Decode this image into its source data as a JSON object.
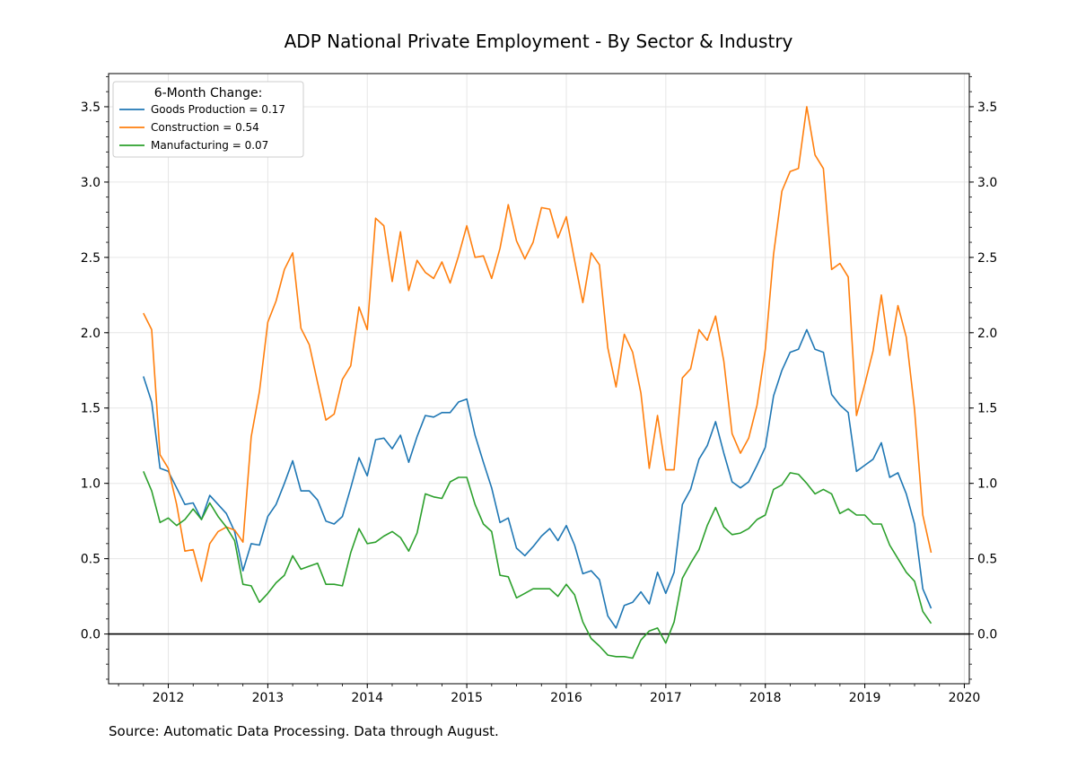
{
  "chart_data": {
    "type": "line",
    "title": "ADP National Private Employment - By Sector & Industry",
    "source": "Source: Automatic Data Processing. Data through August.",
    "xlabel": "",
    "ylabel": "",
    "xlim": [
      2011.4,
      2020.05
    ],
    "ylim": [
      -0.33,
      3.72
    ],
    "x_ticks": [
      2012,
      2013,
      2014,
      2015,
      2016,
      2017,
      2018,
      2019,
      2020
    ],
    "x_tick_labels": [
      "2012",
      "2013",
      "2014",
      "2015",
      "2016",
      "2017",
      "2018",
      "2019",
      "2020"
    ],
    "y_ticks": [
      0.0,
      0.5,
      1.0,
      1.5,
      2.0,
      2.5,
      3.0,
      3.5
    ],
    "y_tick_labels": [
      "0.0",
      "0.5",
      "1.0",
      "1.5",
      "2.0",
      "2.5",
      "3.0",
      "3.5"
    ],
    "grid": true,
    "zero_line": true,
    "legend": {
      "title": "6-Month Change:",
      "position": "top-left"
    },
    "x_start": 2011.75,
    "x_step": 0.08333,
    "series": [
      {
        "name": "Goods Production = 0.17",
        "color": "#1f77b4",
        "values": [
          1.71,
          1.54,
          1.1,
          1.08,
          0.97,
          0.86,
          0.87,
          0.76,
          0.92,
          0.86,
          0.8,
          0.68,
          0.42,
          0.6,
          0.59,
          0.78,
          0.86,
          1.0,
          1.15,
          0.95,
          0.95,
          0.89,
          0.75,
          0.73,
          0.78,
          0.97,
          1.17,
          1.05,
          1.29,
          1.3,
          1.23,
          1.32,
          1.14,
          1.31,
          1.45,
          1.44,
          1.47,
          1.47,
          1.54,
          1.56,
          1.32,
          1.14,
          0.97,
          0.74,
          0.77,
          0.57,
          0.52,
          0.58,
          0.65,
          0.7,
          0.62,
          0.72,
          0.59,
          0.4,
          0.42,
          0.36,
          0.12,
          0.04,
          0.19,
          0.21,
          0.28,
          0.2,
          0.41,
          0.27,
          0.41,
          0.86,
          0.96,
          1.16,
          1.25,
          1.41,
          1.2,
          1.01,
          0.97,
          1.01,
          1.12,
          1.24,
          1.58,
          1.75,
          1.87,
          1.89,
          2.02,
          1.89,
          1.87,
          1.59,
          1.52,
          1.47,
          1.08,
          1.12,
          1.16,
          1.27,
          1.04,
          1.07,
          0.93,
          0.73,
          0.3,
          0.17
        ]
      },
      {
        "name": "Construction = 0.54",
        "color": "#ff7f0e",
        "values": [
          2.13,
          2.02,
          1.19,
          1.1,
          0.86,
          0.55,
          0.56,
          0.35,
          0.6,
          0.68,
          0.71,
          0.69,
          0.61,
          1.31,
          1.61,
          2.07,
          2.21,
          2.42,
          2.53,
          2.03,
          1.92,
          1.67,
          1.42,
          1.46,
          1.69,
          1.78,
          2.17,
          2.02,
          2.76,
          2.71,
          2.34,
          2.67,
          2.28,
          2.48,
          2.4,
          2.36,
          2.47,
          2.33,
          2.51,
          2.71,
          2.5,
          2.51,
          2.36,
          2.56,
          2.85,
          2.61,
          2.49,
          2.6,
          2.83,
          2.82,
          2.63,
          2.77,
          2.48,
          2.2,
          2.53,
          2.45,
          1.9,
          1.64,
          1.99,
          1.87,
          1.6,
          1.1,
          1.45,
          1.09,
          1.09,
          1.7,
          1.76,
          2.02,
          1.95,
          2.11,
          1.81,
          1.33,
          1.2,
          1.3,
          1.52,
          1.89,
          2.52,
          2.94,
          3.07,
          3.09,
          3.5,
          3.18,
          3.09,
          2.42,
          2.46,
          2.37,
          1.45,
          1.66,
          1.88,
          2.25,
          1.85,
          2.18,
          1.97,
          1.49,
          0.79,
          0.54
        ]
      },
      {
        "name": "Manufacturing = 0.07",
        "color": "#2ca02c",
        "values": [
          1.08,
          0.95,
          0.74,
          0.77,
          0.72,
          0.76,
          0.83,
          0.76,
          0.87,
          0.78,
          0.71,
          0.62,
          0.33,
          0.32,
          0.21,
          0.27,
          0.34,
          0.39,
          0.52,
          0.43,
          0.45,
          0.47,
          0.33,
          0.33,
          0.32,
          0.54,
          0.7,
          0.6,
          0.61,
          0.65,
          0.68,
          0.64,
          0.55,
          0.67,
          0.93,
          0.91,
          0.9,
          1.01,
          1.04,
          1.04,
          0.86,
          0.73,
          0.68,
          0.39,
          0.38,
          0.24,
          0.27,
          0.3,
          0.3,
          0.3,
          0.25,
          0.33,
          0.26,
          0.08,
          -0.03,
          -0.08,
          -0.14,
          -0.15,
          -0.15,
          -0.16,
          -0.04,
          0.02,
          0.04,
          -0.06,
          0.08,
          0.37,
          0.47,
          0.56,
          0.72,
          0.84,
          0.71,
          0.66,
          0.67,
          0.7,
          0.76,
          0.79,
          0.96,
          0.99,
          1.07,
          1.06,
          1.0,
          0.93,
          0.96,
          0.93,
          0.8,
          0.83,
          0.79,
          0.79,
          0.73,
          0.73,
          0.59,
          0.5,
          0.41,
          0.35,
          0.15,
          0.07
        ]
      }
    ]
  }
}
